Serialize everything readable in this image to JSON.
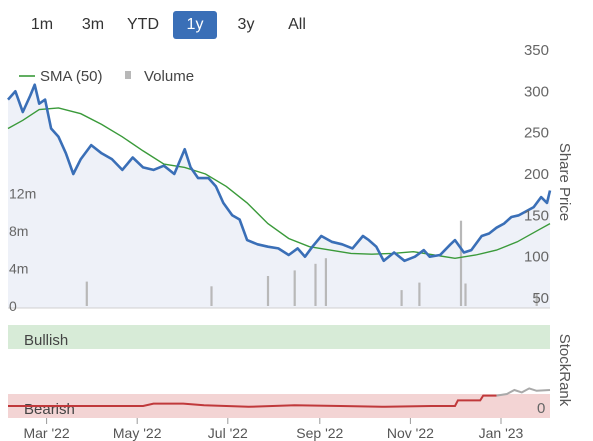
{
  "range_buttons": [
    {
      "label": "1m",
      "active": false
    },
    {
      "label": "3m",
      "active": false
    },
    {
      "label": "YTD",
      "active": false
    },
    {
      "label": "1y",
      "active": true
    },
    {
      "label": "3y",
      "active": false
    },
    {
      "label": "All",
      "active": false
    }
  ],
  "colors": {
    "price": "#3a6fb7",
    "sma": "#3a9a3a",
    "volume": "#b8b8b8",
    "price_area": "#eef1f8",
    "bullish_band": "#d7ebd7",
    "bearish_band": "#f3d4d4",
    "stockrank_past": "#c0393b",
    "stockrank_recent": "#a9a9a9",
    "active_button": "#3a6fb7"
  },
  "chart_data": [
    {
      "type": "line",
      "y_axis_title": "Share Price",
      "ylim": [
        50,
        350
      ],
      "y_ticks": [
        "50",
        "100",
        "150",
        "200",
        "250",
        "300",
        "350"
      ],
      "x_ticks": [
        "Mar '22",
        "May '22",
        "Jul '22",
        "Sep '22",
        "Nov '22",
        "Jan '23"
      ],
      "x_range": [
        "2022-02-03",
        "2023-02-03"
      ],
      "legend": [
        {
          "name": "SMA (50)",
          "symbol": "line"
        },
        {
          "name": "Volume",
          "symbol": "square"
        }
      ],
      "series": [
        {
          "name": "Share price",
          "points": [
            [
              "2022-02-03",
              290
            ],
            [
              "2022-02-08",
              300
            ],
            [
              "2022-02-13",
              275
            ],
            [
              "2022-02-18",
              295
            ],
            [
              "2022-02-21",
              308
            ],
            [
              "2022-02-24",
              285
            ],
            [
              "2022-02-28",
              290
            ],
            [
              "2022-03-04",
              255
            ],
            [
              "2022-03-09",
              245
            ],
            [
              "2022-03-14",
              225
            ],
            [
              "2022-03-19",
              200
            ],
            [
              "2022-03-24",
              218
            ],
            [
              "2022-03-31",
              235
            ],
            [
              "2022-04-07",
              225
            ],
            [
              "2022-04-14",
              218
            ],
            [
              "2022-04-21",
              205
            ],
            [
              "2022-04-28",
              220
            ],
            [
              "2022-05-05",
              208
            ],
            [
              "2022-05-12",
              205
            ],
            [
              "2022-05-19",
              210
            ],
            [
              "2022-05-26",
              200
            ],
            [
              "2022-06-02",
              230
            ],
            [
              "2022-06-06",
              208
            ],
            [
              "2022-06-11",
              195
            ],
            [
              "2022-06-18",
              195
            ],
            [
              "2022-06-23",
              185
            ],
            [
              "2022-06-28",
              165
            ],
            [
              "2022-07-04",
              150
            ],
            [
              "2022-07-09",
              145
            ],
            [
              "2022-07-14",
              120
            ],
            [
              "2022-07-21",
              115
            ],
            [
              "2022-07-28",
              112
            ],
            [
              "2022-08-04",
              110
            ],
            [
              "2022-08-11",
              102
            ],
            [
              "2022-08-17",
              110
            ],
            [
              "2022-08-22",
              100
            ],
            [
              "2022-08-27",
              112
            ],
            [
              "2022-09-02",
              125
            ],
            [
              "2022-09-09",
              118
            ],
            [
              "2022-09-16",
              115
            ],
            [
              "2022-09-23",
              110
            ],
            [
              "2022-09-30",
              125
            ],
            [
              "2022-10-04",
              120
            ],
            [
              "2022-10-09",
              112
            ],
            [
              "2022-10-14",
              95
            ],
            [
              "2022-10-21",
              105
            ],
            [
              "2022-10-28",
              95
            ],
            [
              "2022-11-04",
              100
            ],
            [
              "2022-11-10",
              108
            ],
            [
              "2022-11-14",
              100
            ],
            [
              "2022-11-21",
              102
            ],
            [
              "2022-11-28",
              115
            ],
            [
              "2022-12-01",
              120
            ],
            [
              "2022-12-07",
              105
            ],
            [
              "2022-12-12",
              108
            ],
            [
              "2022-12-19",
              125
            ],
            [
              "2022-12-24",
              128
            ],
            [
              "2022-12-29",
              135
            ],
            [
              "2023-01-03",
              140
            ],
            [
              "2023-01-08",
              148
            ],
            [
              "2023-01-13",
              150
            ],
            [
              "2023-01-18",
              155
            ],
            [
              "2023-01-23",
              160
            ],
            [
              "2023-01-28",
              172
            ],
            [
              "2023-02-01",
              165
            ],
            [
              "2023-02-03",
              180
            ]
          ]
        },
        {
          "name": "SMA (50)",
          "points": [
            [
              "2022-02-03",
              255
            ],
            [
              "2022-02-13",
              265
            ],
            [
              "2022-02-24",
              278
            ],
            [
              "2022-03-09",
              280
            ],
            [
              "2022-03-24",
              273
            ],
            [
              "2022-04-07",
              260
            ],
            [
              "2022-04-21",
              245
            ],
            [
              "2022-05-05",
              228
            ],
            [
              "2022-05-19",
              212
            ],
            [
              "2022-06-02",
              208
            ],
            [
              "2022-06-16",
              200
            ],
            [
              "2022-06-30",
              185
            ],
            [
              "2022-07-14",
              165
            ],
            [
              "2022-07-28",
              140
            ],
            [
              "2022-08-11",
              122
            ],
            [
              "2022-08-25",
              112
            ],
            [
              "2022-09-08",
              108
            ],
            [
              "2022-09-22",
              104
            ],
            [
              "2022-10-06",
              103
            ],
            [
              "2022-10-20",
              104
            ],
            [
              "2022-11-03",
              106
            ],
            [
              "2022-11-17",
              102
            ],
            [
              "2022-12-01",
              98
            ],
            [
              "2022-12-15",
              102
            ],
            [
              "2022-12-29",
              108
            ],
            [
              "2023-01-12",
              118
            ],
            [
              "2023-01-26",
              132
            ],
            [
              "2023-02-03",
              140
            ]
          ]
        }
      ],
      "volume": {
        "name": "Volume",
        "ylim_millions": [
          0,
          16
        ],
        "y_ticks": [
          "0",
          "4m",
          "8m",
          "12m"
        ],
        "bars": [
          [
            "2022-03-28",
            2.6
          ],
          [
            "2022-06-20",
            2.1
          ],
          [
            "2022-07-28",
            3.2
          ],
          [
            "2022-08-15",
            3.8
          ],
          [
            "2022-08-29",
            4.5
          ],
          [
            "2022-09-05",
            5.1
          ],
          [
            "2022-10-26",
            1.7
          ],
          [
            "2022-11-07",
            2.5
          ],
          [
            "2022-12-05",
            9.1
          ],
          [
            "2022-12-08",
            2.4
          ],
          [
            "2023-01-25",
            1.3
          ]
        ]
      }
    },
    {
      "type": "line",
      "y_axis_title": "StockRank",
      "zones": [
        "Bullish",
        "Bearish"
      ],
      "y_ticks": [
        "0"
      ],
      "ylim": [
        0,
        100
      ],
      "series": [
        {
          "name": "StockRank",
          "points": [
            [
              "2022-02-03",
              5
            ],
            [
              "2022-03-05",
              5
            ],
            [
              "2022-05-05",
              5
            ],
            [
              "2022-05-12",
              8
            ],
            [
              "2022-06-01",
              8
            ],
            [
              "2022-06-15",
              6
            ],
            [
              "2022-07-15",
              4
            ],
            [
              "2022-08-15",
              6
            ],
            [
              "2022-09-15",
              5
            ],
            [
              "2022-10-15",
              4
            ],
            [
              "2022-11-15",
              5
            ],
            [
              "2022-12-01",
              5
            ],
            [
              "2022-12-03",
              12
            ],
            [
              "2022-12-18",
              12
            ],
            [
              "2022-12-20",
              18
            ],
            [
              "2022-12-25",
              18
            ],
            [
              "2022-12-29",
              18
            ],
            [
              "2023-01-05",
              20
            ],
            [
              "2023-01-10",
              25
            ],
            [
              "2023-01-15",
              22
            ],
            [
              "2023-01-20",
              27
            ],
            [
              "2023-01-25",
              24
            ],
            [
              "2023-02-03",
              25
            ]
          ]
        }
      ]
    }
  ]
}
